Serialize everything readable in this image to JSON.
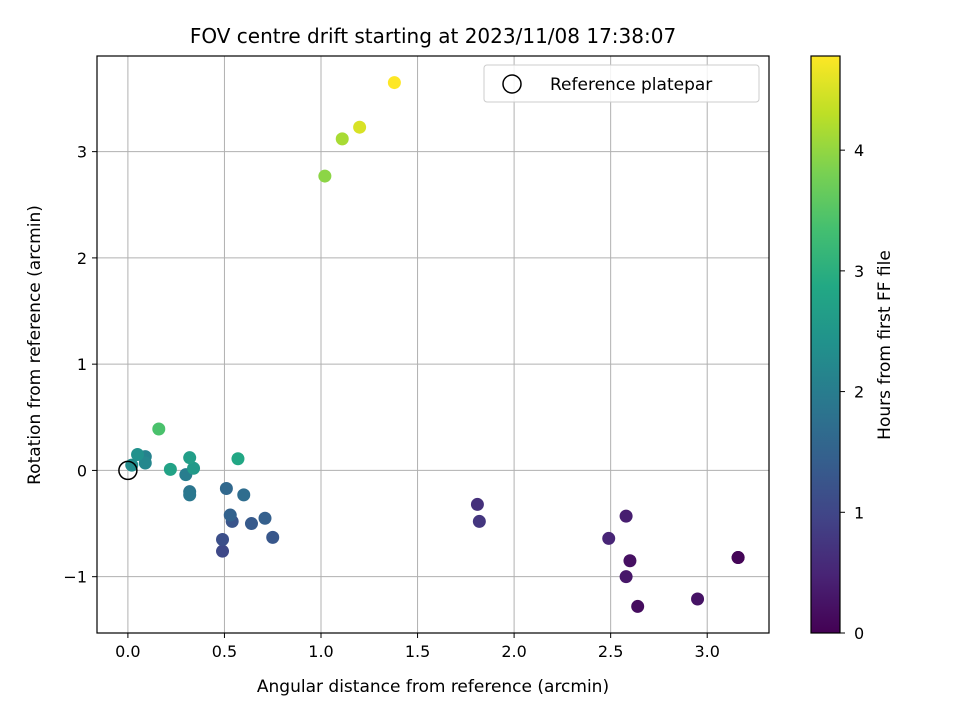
{
  "chart_data": {
    "type": "scatter",
    "title": "FOV centre drift starting at 2023/11/08 17:38:07",
    "xlabel": "Angular distance from reference (arcmin)",
    "ylabel": "Rotation from reference (arcmin)",
    "xlim": [
      -0.16,
      3.32
    ],
    "ylim": [
      -1.53,
      3.9
    ],
    "xticks": [
      0.0,
      0.5,
      1.0,
      1.5,
      2.0,
      2.5,
      3.0
    ],
    "xtick_labels": [
      "0.0",
      "0.5",
      "1.0",
      "1.5",
      "2.0",
      "2.5",
      "3.0"
    ],
    "yticks": [
      -1,
      0,
      1,
      2,
      3
    ],
    "ytick_labels": [
      "−1",
      "0",
      "1",
      "2",
      "3"
    ],
    "grid": true,
    "legend": {
      "position": "top-right",
      "entries": [
        "Reference platepar"
      ]
    },
    "reference_point": {
      "x": 0.0,
      "y": 0.0
    },
    "colorbar": {
      "label": "Hours from first FF file",
      "colormap": "viridis",
      "range": [
        0,
        4.78
      ],
      "ticks": [
        0,
        1,
        2,
        3,
        4
      ],
      "tick_labels": [
        "0",
        "1",
        "2",
        "3",
        "4"
      ]
    },
    "points": [
      {
        "x": 3.16,
        "y": -0.82,
        "hours": 0.0
      },
      {
        "x": 3.16,
        "y": -0.82,
        "hours": 0.05
      },
      {
        "x": 2.64,
        "y": -1.28,
        "hours": 0.15
      },
      {
        "x": 2.6,
        "y": -0.85,
        "hours": 0.2
      },
      {
        "x": 2.95,
        "y": -1.21,
        "hours": 0.25
      },
      {
        "x": 2.58,
        "y": -1.0,
        "hours": 0.3
      },
      {
        "x": 2.58,
        "y": -0.43,
        "hours": 0.4
      },
      {
        "x": 2.49,
        "y": -0.64,
        "hours": 0.5
      },
      {
        "x": 1.81,
        "y": -0.32,
        "hours": 0.65
      },
      {
        "x": 1.82,
        "y": -0.48,
        "hours": 0.75
      },
      {
        "x": 0.49,
        "y": -0.76,
        "hours": 1.05
      },
      {
        "x": 0.49,
        "y": -0.65,
        "hours": 1.15
      },
      {
        "x": 0.54,
        "y": -0.48,
        "hours": 1.25
      },
      {
        "x": 0.75,
        "y": -0.63,
        "hours": 1.3
      },
      {
        "x": 0.64,
        "y": -0.5,
        "hours": 1.35
      },
      {
        "x": 0.71,
        "y": -0.45,
        "hours": 1.45
      },
      {
        "x": 0.53,
        "y": -0.42,
        "hours": 1.5
      },
      {
        "x": 0.51,
        "y": -0.17,
        "hours": 1.6
      },
      {
        "x": 0.6,
        "y": -0.23,
        "hours": 1.7
      },
      {
        "x": 0.32,
        "y": -0.2,
        "hours": 1.85
      },
      {
        "x": 0.32,
        "y": -0.23,
        "hours": 1.9
      },
      {
        "x": 0.3,
        "y": -0.04,
        "hours": 2.0
      },
      {
        "x": 0.09,
        "y": 0.13,
        "hours": 2.1
      },
      {
        "x": 0.09,
        "y": 0.07,
        "hours": 2.2
      },
      {
        "x": 0.02,
        "y": 0.05,
        "hours": 2.3
      },
      {
        "x": 0.05,
        "y": 0.15,
        "hours": 2.4
      },
      {
        "x": 0.34,
        "y": 0.02,
        "hours": 2.55
      },
      {
        "x": 0.32,
        "y": 0.12,
        "hours": 2.65
      },
      {
        "x": 0.22,
        "y": 0.01,
        "hours": 2.75
      },
      {
        "x": 0.57,
        "y": 0.11,
        "hours": 2.85
      },
      {
        "x": 0.16,
        "y": 0.39,
        "hours": 3.4
      },
      {
        "x": 1.02,
        "y": 2.77,
        "hours": 3.95
      },
      {
        "x": 1.11,
        "y": 3.12,
        "hours": 4.15
      },
      {
        "x": 1.2,
        "y": 3.23,
        "hours": 4.5
      },
      {
        "x": 1.38,
        "y": 3.65,
        "hours": 4.78
      }
    ]
  }
}
